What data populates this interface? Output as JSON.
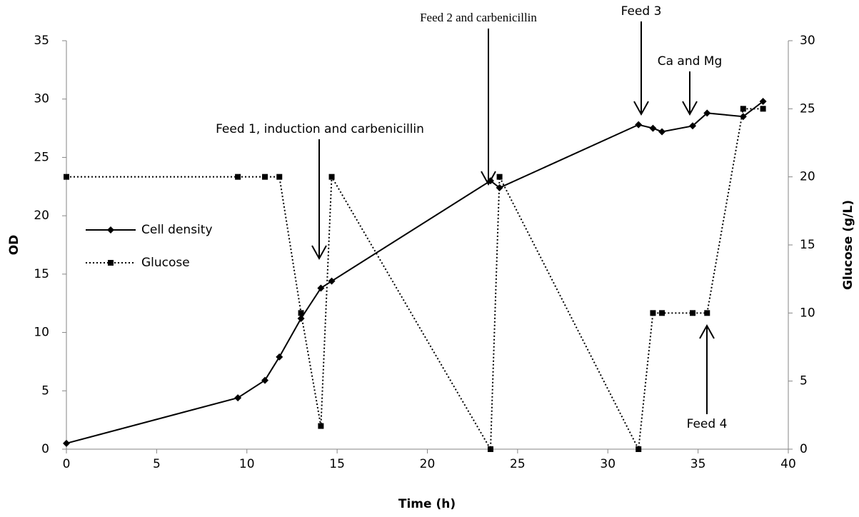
{
  "chart_data": {
    "type": "line",
    "x_label": "Time (h)",
    "y_label": "OD",
    "y2_label": "Glucose (g/L)",
    "xlim": [
      0,
      40
    ],
    "xticks": [
      0,
      5,
      10,
      15,
      20,
      25,
      30,
      35,
      40
    ],
    "ylim": [
      0,
      35
    ],
    "yticks": [
      0,
      5,
      10,
      15,
      20,
      25,
      30,
      35
    ],
    "y2lim": [
      0,
      30
    ],
    "y2ticks": [
      0,
      5,
      10,
      15,
      20,
      25,
      30
    ],
    "grid": false,
    "legend": "left",
    "annotations": [
      "Feed 1, induction and carbenicillin",
      "Feed 2 and carbenicillin",
      "Feed 3",
      "Ca and Mg",
      "Feed 4"
    ],
    "series": [
      {
        "name": "Cell density",
        "color": "#000000",
        "line_style": "solid",
        "marker": "diamond",
        "x": [
          0,
          9.5,
          11,
          11.8,
          13,
          14.1,
          14.7,
          23.5,
          24,
          31.7,
          32.5,
          33,
          34.7,
          35.5,
          37.5,
          38.6
        ],
        "values": [
          0.5,
          4.4,
          5.9,
          7.9,
          11.2,
          13.8,
          14.4,
          23.0,
          22.4,
          27.8,
          27.5,
          27.2,
          27.7,
          28.8,
          28.5,
          29.8
        ]
      },
      {
        "name": "Glucose",
        "color": "#000000",
        "line_style": "dotted",
        "marker": "square",
        "axis": "y2",
        "x": [
          0,
          9.5,
          11,
          11.8,
          13,
          14.1,
          14.7,
          23.5,
          24,
          31.7,
          32.5,
          33,
          34.7,
          35.5,
          37.5,
          38.6
        ],
        "values": [
          20,
          20,
          20,
          20,
          10,
          1.7,
          20,
          0,
          20,
          0,
          10,
          10,
          10,
          10,
          25,
          25
        ]
      }
    ]
  }
}
